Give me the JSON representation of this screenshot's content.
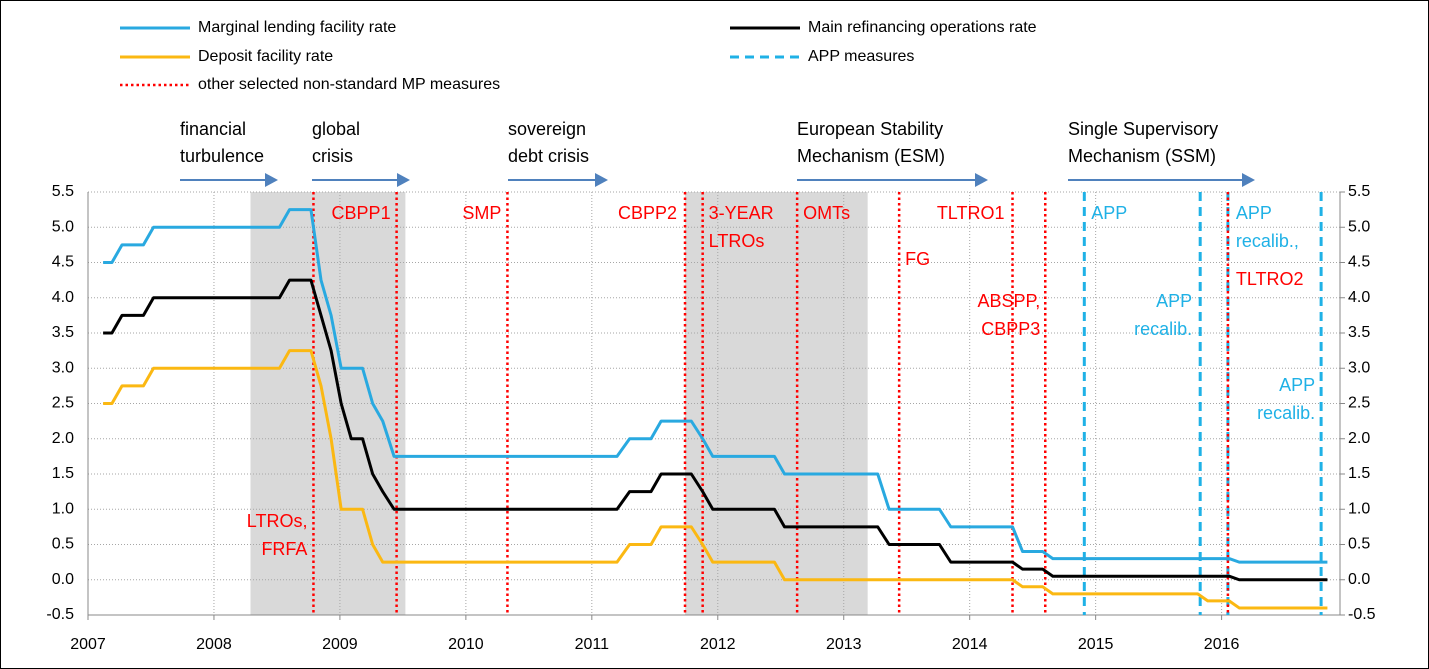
{
  "chart_data": {
    "type": "line",
    "x": [
      2007.12,
      2007.19,
      2007.27,
      2007.44,
      2007.52,
      2008.52,
      2008.6,
      2008.77,
      2008.85,
      2008.93,
      2009.01,
      2009.09,
      2009.18,
      2009.26,
      2009.34,
      2009.43,
      2011.2,
      2011.3,
      2011.47,
      2011.55,
      2011.79,
      2011.88,
      2011.96,
      2012.45,
      2012.53,
      2013.27,
      2013.36,
      2013.76,
      2013.85,
      2014.34,
      2014.42,
      2014.58,
      2014.66,
      2015.81,
      2015.89,
      2016.06,
      2016.14,
      2016.84
    ],
    "series": [
      {
        "name": "Marginal lending facility rate",
        "color": "#29a9e0",
        "values": [
          4.5,
          4.5,
          4.75,
          4.75,
          5,
          5,
          5.25,
          5.25,
          4.25,
          3.75,
          3.0,
          3.0,
          3.0,
          2.5,
          2.25,
          1.75,
          1.75,
          2.0,
          2.0,
          2.25,
          2.25,
          2.0,
          1.75,
          1.75,
          1.5,
          1.5,
          1.0,
          1.0,
          0.75,
          0.75,
          0.4,
          0.4,
          0.3,
          0.3,
          0.3,
          0.3,
          0.25,
          0.25
        ]
      },
      {
        "name": "Main refinancing operations rate",
        "color": "#000000",
        "values": [
          3.5,
          3.5,
          3.75,
          3.75,
          4,
          4,
          4.25,
          4.25,
          3.75,
          3.25,
          2.5,
          2.0,
          2.0,
          1.5,
          1.25,
          1.0,
          1.0,
          1.25,
          1.25,
          1.5,
          1.5,
          1.25,
          1.0,
          1.0,
          0.75,
          0.75,
          0.5,
          0.5,
          0.25,
          0.25,
          0.15,
          0.15,
          0.05,
          0.05,
          0.05,
          0.05,
          0,
          0
        ]
      },
      {
        "name": "Deposit facility rate",
        "color": "#fbb812",
        "values": [
          2.5,
          2.5,
          2.75,
          2.75,
          3,
          3,
          3.25,
          3.25,
          2.75,
          2.0,
          1.0,
          1.0,
          1.0,
          0.5,
          0.25,
          0.25,
          0.25,
          0.5,
          0.5,
          0.75,
          0.75,
          0.5,
          0.25,
          0.25,
          0,
          0,
          0,
          0,
          0,
          0,
          -0.1,
          -0.1,
          -0.2,
          -0.2,
          -0.3,
          -0.3,
          -0.4,
          -0.4
        ]
      }
    ],
    "measure_types": [
      {
        "name": "APP measures",
        "color": "#1fb1e6",
        "dash": "dashed"
      },
      {
        "name": "other selected non-standard MP measures",
        "color": "#ff0000",
        "dash": "dotted"
      }
    ],
    "measures": [
      {
        "x": 2008.79,
        "kind": 1,
        "label_lines": [
          "LTROs,",
          "FRFA"
        ]
      },
      {
        "x": 2009.45,
        "kind": 1,
        "label_lines": [
          "CBPP1"
        ]
      },
      {
        "x": 2010.33,
        "kind": 1,
        "label_lines": [
          "SMP"
        ]
      },
      {
        "x": 2011.74,
        "kind": 1,
        "label_lines": [
          "CBPP2"
        ]
      },
      {
        "x": 2011.88,
        "kind": 1,
        "label_lines": [
          "3-YEAR",
          "LTROs"
        ]
      },
      {
        "x": 2012.63,
        "kind": 1,
        "label_lines": [
          "OMTs"
        ]
      },
      {
        "x": 2013.44,
        "kind": 1,
        "label_lines": [
          "FG"
        ]
      },
      {
        "x": 2014.34,
        "kind": 1,
        "label_lines": [
          "TLTRO1"
        ]
      },
      {
        "x": 2014.6,
        "kind": 1,
        "label_lines": [
          "ABSPP,",
          "CBPP3"
        ]
      },
      {
        "x": 2014.91,
        "kind": 0,
        "label_lines": [
          "APP"
        ]
      },
      {
        "x": 2015.83,
        "kind": 0,
        "label_lines": [
          "APP",
          "recalib."
        ]
      },
      {
        "x": 2016.05,
        "kind": 0,
        "label_lines": [
          "APP",
          "recalib.,"
        ]
      },
      {
        "x": 2016.05,
        "kind": 1,
        "label_lines": [
          "TLTRO2"
        ]
      },
      {
        "x": 2016.79,
        "kind": 0,
        "label_lines": [
          "APP",
          "recalib."
        ]
      }
    ],
    "periods": [
      {
        "label_lines": [
          "financial",
          "turbulence"
        ]
      },
      {
        "label_lines": [
          "global",
          "crisis"
        ]
      },
      {
        "label_lines": [
          "sovereign",
          "debt crisis"
        ]
      },
      {
        "label_lines": [
          "European Stability",
          "Mechanism (ESM)"
        ]
      },
      {
        "label_lines": [
          "Single Supervisory",
          "Mechanism (SSM)"
        ]
      }
    ],
    "shaded_periods": [
      {
        "start": 2008.29,
        "end": 2009.52
      },
      {
        "start": 2011.74,
        "end": 2013.19
      }
    ],
    "shade_color": "#d9d9d9",
    "xlim": [
      2007,
      2016.94
    ],
    "xticks": [
      2007,
      2008,
      2009,
      2010,
      2011,
      2012,
      2013,
      2014,
      2015,
      2016
    ],
    "ylim": [
      -0.5,
      5.5
    ],
    "yticks": [
      -0.5,
      {
        "value": 0,
        "label": "0.0"
      },
      0.5,
      {
        "value": 1,
        "label": "1.0"
      },
      1.5,
      {
        "value": 2,
        "label": "2.0"
      },
      2.5,
      {
        "value": 3,
        "label": "3.0"
      },
      3.5,
      {
        "value": 4,
        "label": "4.0"
      },
      4.5,
      {
        "value": 5,
        "label": "5.0"
      },
      5.5
    ],
    "y2lim": [
      -0.5,
      5.5
    ],
    "y2ticks": [
      -0.5,
      {
        "value": 0,
        "label": "0.0"
      },
      0.5,
      {
        "value": 1,
        "label": "1.0"
      },
      1.5,
      {
        "value": 2,
        "label": "2.0"
      },
      2.5,
      {
        "value": 3,
        "label": "3.0"
      },
      3.5,
      {
        "value": 4,
        "label": "4.0"
      },
      4.5,
      {
        "value": 5,
        "label": "5.0"
      },
      5.5
    ],
    "grid": true
  }
}
